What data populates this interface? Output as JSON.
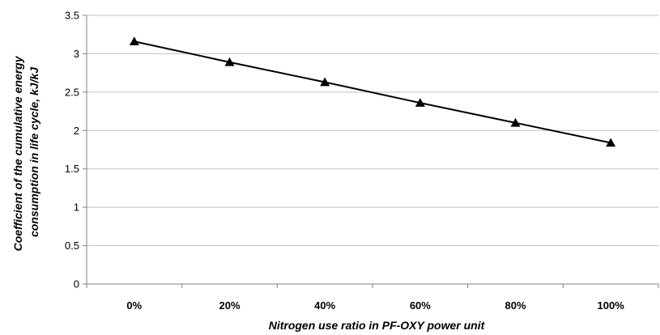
{
  "chart_data": {
    "type": "line",
    "categories": [
      "0%",
      "20%",
      "40%",
      "60%",
      "80%",
      "100%"
    ],
    "series": [
      {
        "values": [
          3.16,
          2.89,
          2.63,
          2.36,
          2.1,
          1.84
        ]
      }
    ],
    "xlabel": "Nitrogen use ratio in PF-OXY power unit",
    "ylabel_lines": [
      "Coefficient of the cumulative energy",
      "consumption in life cycle, kJ/kJ"
    ],
    "ylim": [
      0,
      3.5
    ],
    "yticks": [
      "0",
      "0.5",
      "1",
      "1.5",
      "2",
      "2.5",
      "3",
      "3.5"
    ],
    "grid": true,
    "marker": "triangle",
    "colors": {
      "line": "#000000",
      "grid": "#c0c0c0",
      "axis": "#808080"
    }
  }
}
